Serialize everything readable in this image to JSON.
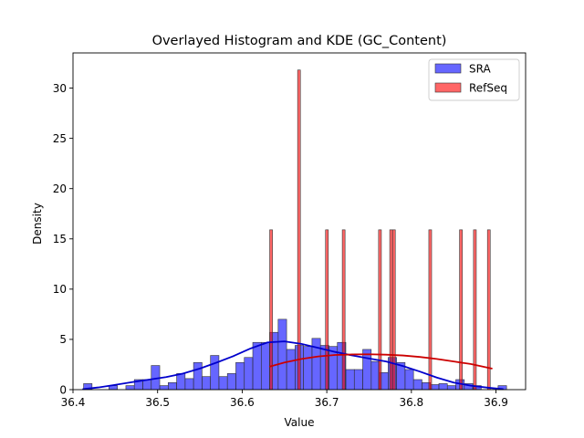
{
  "chart_data": {
    "type": "histogram",
    "title": "Overlayed Histogram and KDE (GC_Content)",
    "xlabel": "Value",
    "ylabel": "Density",
    "xlim": [
      36.4,
      36.935
    ],
    "ylim": [
      0,
      33.5
    ],
    "xticks": [
      {
        "value": 36.4,
        "label": "36.4"
      },
      {
        "value": 36.5,
        "label": "36.5"
      },
      {
        "value": 36.6,
        "label": "36.6"
      },
      {
        "value": 36.7,
        "label": "36.7"
      },
      {
        "value": 36.8,
        "label": "36.8"
      },
      {
        "value": 36.9,
        "label": "36.9"
      }
    ],
    "yticks": [
      {
        "value": 0,
        "label": "0"
      },
      {
        "value": 5,
        "label": "5"
      },
      {
        "value": 10,
        "label": "10"
      },
      {
        "value": 15,
        "label": "15"
      },
      {
        "value": 20,
        "label": "20"
      },
      {
        "value": 25,
        "label": "25"
      },
      {
        "value": 30,
        "label": "30"
      }
    ],
    "grid": false,
    "legend_position": "top-right",
    "series": [
      {
        "name": "SRA",
        "fill": "#0000ff",
        "line": "#0000cc",
        "fill_opacity": 0.6,
        "bin_edges": [
          36.4125,
          36.4225,
          36.4325,
          36.4425,
          36.4525,
          36.4625,
          36.4725,
          36.4825,
          36.4925,
          36.5025,
          36.5125,
          36.5225,
          36.5325,
          36.5425,
          36.5525,
          36.5625,
          36.5725,
          36.5825,
          36.5925,
          36.6025,
          36.6125,
          36.6225,
          36.6325,
          36.6425,
          36.6525,
          36.6625,
          36.6725,
          36.6825,
          36.6925,
          36.7025,
          36.7125,
          36.7225,
          36.7325,
          36.7425,
          36.7525,
          36.7625,
          36.7725,
          36.7825,
          36.7925,
          36.8025,
          36.8125,
          36.8225,
          36.8325,
          36.8425,
          36.8525,
          36.8625,
          36.8725,
          36.8825,
          36.8925,
          36.9025,
          36.9125
        ],
        "densities": [
          0.6,
          0,
          0,
          0.4,
          0,
          0.4,
          1.0,
          1.0,
          2.4,
          0.4,
          0.7,
          1.6,
          1.1,
          2.7,
          1.3,
          3.4,
          1.3,
          1.6,
          2.7,
          3.2,
          4.7,
          4.7,
          5.7,
          7.0,
          4.0,
          4.4,
          4.3,
          5.1,
          4.4,
          4.3,
          4.7,
          2.0,
          2.0,
          4.0,
          2.8,
          1.7,
          3.2,
          2.7,
          2.0,
          1.0,
          0.7,
          0.5,
          0.6,
          0.4,
          1.0,
          0.6,
          0.4,
          0,
          0,
          0.4
        ],
        "kde": {
          "x": [
            36.412,
            36.43,
            36.45,
            36.47,
            36.49,
            36.51,
            36.53,
            36.55,
            36.57,
            36.59,
            36.61,
            36.63,
            36.65,
            36.67,
            36.69,
            36.71,
            36.73,
            36.75,
            36.77,
            36.79,
            36.81,
            36.83,
            36.85,
            36.87,
            36.89,
            36.908
          ],
          "y": [
            0.05,
            0.22,
            0.48,
            0.75,
            1.0,
            1.25,
            1.6,
            2.1,
            2.7,
            3.35,
            4.1,
            4.7,
            4.8,
            4.55,
            4.15,
            3.75,
            3.4,
            3.1,
            2.8,
            2.35,
            1.8,
            1.2,
            0.7,
            0.4,
            0.2,
            0.05
          ]
        }
      },
      {
        "name": "RefSeq",
        "fill": "#ff0000",
        "line": "#cc0000",
        "fill_opacity": 0.6,
        "bin_edges": [
          36.6325,
          36.6358,
          36.6391,
          36.6424,
          36.6457,
          36.649,
          36.6523,
          36.6556,
          36.6589,
          36.6622,
          36.6655,
          36.6688,
          36.6721,
          36.6754,
          36.6787,
          36.682,
          36.6853,
          36.6886,
          36.6919,
          36.6952,
          36.6985,
          36.7018,
          36.7051,
          36.7084,
          36.7117,
          36.715,
          36.7183,
          36.7216,
          36.7249,
          36.7282,
          36.7315,
          36.7348,
          36.7381,
          36.7414,
          36.7447,
          36.748,
          36.7513,
          36.7546,
          36.7579,
          36.7612,
          36.7645,
          36.7678,
          36.7711,
          36.7744,
          36.7777,
          36.781,
          36.7843,
          36.7876,
          36.7909,
          36.7942,
          36.7975,
          36.8008,
          36.8041,
          36.8074,
          36.8107,
          36.814,
          36.8173,
          36.8206,
          36.8239,
          36.8272,
          36.8305,
          36.8338,
          36.8371,
          36.8404,
          36.8437,
          36.847,
          36.8503,
          36.8536,
          36.8569,
          36.8602,
          36.8635,
          36.8668,
          36.8701,
          36.8734,
          36.8767,
          36.88,
          36.8833,
          36.8866,
          36.8899,
          36.8932,
          36.8965
        ],
        "densities": [
          15.9,
          0,
          0,
          0,
          0,
          0,
          0,
          0,
          0,
          0,
          31.8,
          0,
          0,
          0,
          0,
          0,
          0,
          0,
          0,
          0,
          15.9,
          0,
          0,
          0,
          0,
          0,
          15.9,
          0,
          0,
          0,
          0,
          0,
          0,
          0,
          0,
          0,
          0,
          0,
          0,
          15.9,
          0,
          0,
          0,
          15.9,
          15.9,
          0,
          0,
          0,
          0,
          0,
          0,
          0,
          0,
          0,
          0,
          0,
          0,
          15.9,
          0,
          0,
          0,
          0,
          0,
          0,
          0,
          0,
          0,
          0,
          15.9,
          0,
          0,
          0,
          0,
          15.9,
          0,
          0,
          0,
          0,
          15.9,
          0
        ],
        "kde": {
          "x": [
            36.633,
            36.65,
            36.67,
            36.69,
            36.71,
            36.73,
            36.75,
            36.77,
            36.79,
            36.81,
            36.83,
            36.85,
            36.87,
            36.895
          ],
          "y": [
            2.3,
            2.7,
            3.05,
            3.3,
            3.45,
            3.5,
            3.52,
            3.48,
            3.4,
            3.25,
            3.05,
            2.8,
            2.55,
            2.1
          ]
        }
      }
    ]
  }
}
